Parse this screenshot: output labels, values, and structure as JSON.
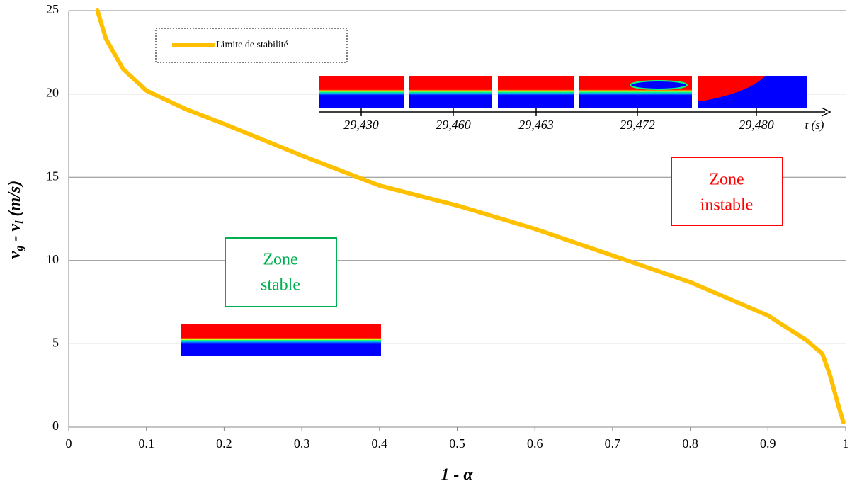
{
  "chart_data": {
    "type": "line",
    "xlabel": "1 - α",
    "ylabel": [
      "v",
      "g",
      " - v",
      "l",
      " (m/s)"
    ],
    "x": [
      0.037,
      0.048,
      0.07,
      0.1,
      0.15,
      0.2,
      0.3,
      0.4,
      0.5,
      0.6,
      0.7,
      0.8,
      0.9,
      0.95,
      0.97,
      0.98,
      0.99,
      0.997
    ],
    "series": [
      {
        "name": "Limite de stabilité",
        "color": "#ffc000",
        "values": [
          25,
          23.3,
          21.5,
          20.2,
          19.1,
          18.2,
          16.3,
          14.5,
          13.3,
          11.9,
          10.3,
          8.7,
          6.7,
          5.2,
          4.4,
          3.1,
          1.4,
          0.3
        ]
      }
    ],
    "xlim": [
      0,
      1
    ],
    "xticks": [
      0,
      0.1,
      0.2,
      0.3,
      0.4,
      0.5,
      0.6,
      0.7,
      0.8,
      0.9,
      1
    ],
    "ylim": [
      0,
      25
    ],
    "yticks": [
      0,
      5,
      10,
      15,
      20,
      25
    ],
    "grid": true,
    "annotations": {
      "zone_stable": [
        "Zone",
        "stable"
      ],
      "zone_instable": [
        "Zone",
        "instable"
      ],
      "time_labels": [
        "29,430",
        "29,460",
        "29,463",
        "29,472",
        "29,480"
      ],
      "time_axis_label": "t (s)"
    }
  }
}
